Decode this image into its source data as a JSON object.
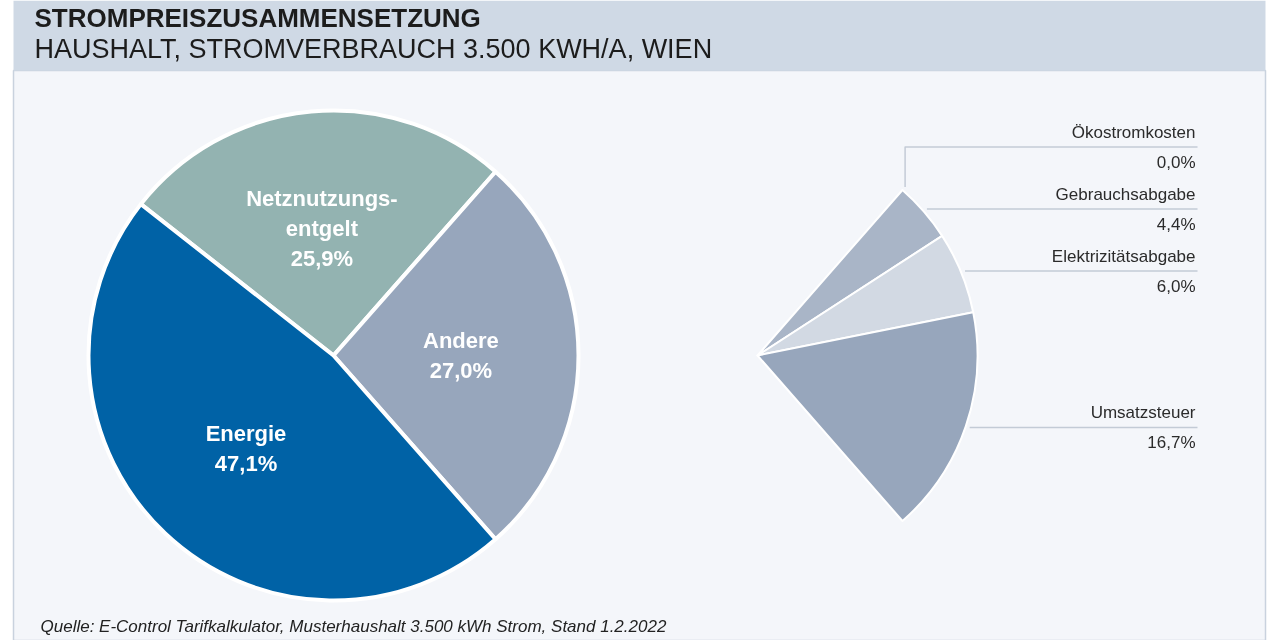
{
  "chart_data": [
    {
      "type": "pie",
      "title": "STROMPREISZUSAMMENSETZUNG",
      "subtitle": "HAUSHALT, STROMVERBRAUCH 3.500 KWH/A, WIEN",
      "categories": [
        "Netznutzungs-\nentgelt",
        "Andere",
        "Energie"
      ],
      "values": [
        25.9,
        27.0,
        47.1
      ],
      "colors": [
        "#93b3b1",
        "#97a6bc",
        "#0062a6"
      ],
      "value_labels": [
        "25,9%",
        "27,0%",
        "47,1%"
      ],
      "annotations": [
        "Quelle: E-Control Tarifkalkulator, Musterhaushalt 3.500 kWh Strom, Stand 1.2.2022"
      ]
    },
    {
      "type": "pie",
      "categories": [
        "Ökostromkosten",
        "Gebrauchsabgabe",
        "Elektrizitätsabgabe",
        "Umsatzsteuer"
      ],
      "values": [
        0.0,
        4.4,
        6.0,
        16.7
      ],
      "colors": [
        null,
        "#a9b5c7",
        "#d2d9e3",
        "#97a6bc"
      ],
      "value_labels": [
        "0,0%",
        "4,4%",
        "6,0%",
        "16,7%"
      ]
    }
  ]
}
